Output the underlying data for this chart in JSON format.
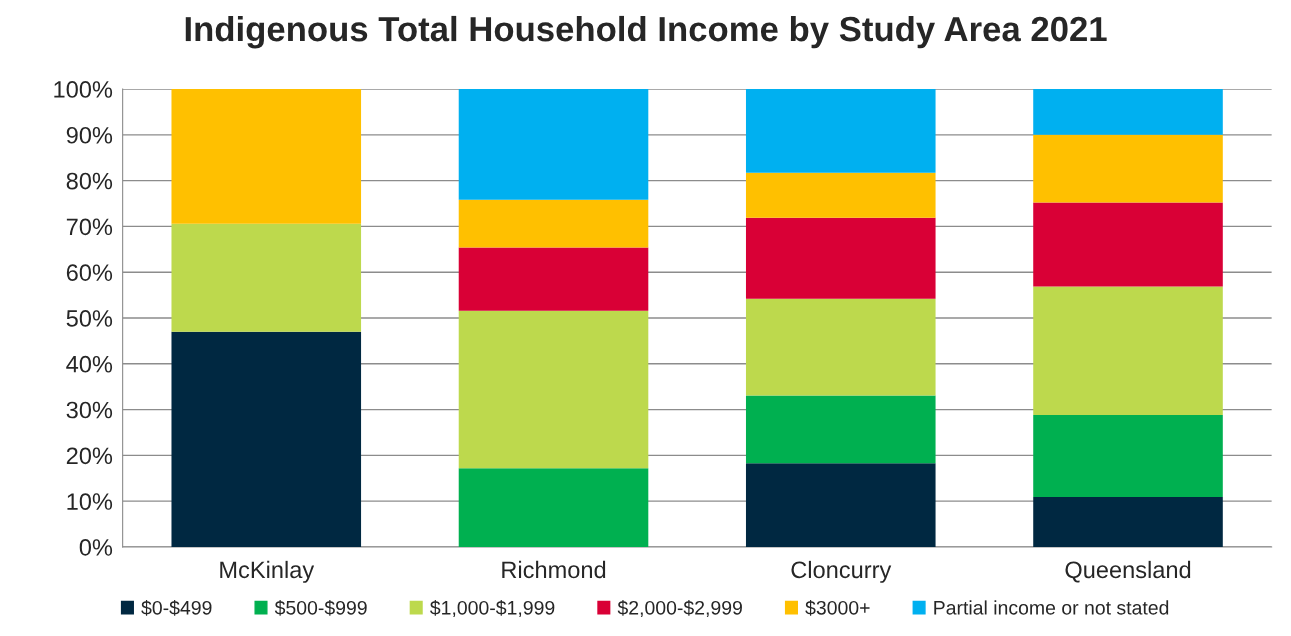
{
  "chart_data": {
    "type": "bar",
    "title": "Indigenous Total Household Income by Study Area 2021",
    "stacked": true,
    "categories": [
      "McKinlay",
      "Richmond",
      "Cloncurry",
      "Queensland"
    ],
    "series": [
      {
        "name": "$0-$499",
        "color": "#002841",
        "values": [
          47,
          null,
          18.3,
          10.9
        ]
      },
      {
        "name": "$500-$999",
        "color": "#00b050",
        "values": [
          null,
          17.2,
          14.8,
          17.9
        ]
      },
      {
        "name": "$1,000-$1,999",
        "color": "#bdd94d",
        "values": [
          23.6,
          34.4,
          21.1,
          28.1
        ]
      },
      {
        "name": "$2,000-$2,999",
        "color": "#d90036",
        "values": [
          null,
          13.8,
          17.7,
          18.3
        ]
      },
      {
        "name": "$3000+",
        "color": "#ffc000",
        "values": [
          29.4,
          10.4,
          9.8,
          14.8
        ]
      },
      {
        "name": "Partial income or not stated",
        "color": "#00b0f0",
        "values": [
          null,
          24.2,
          18.3,
          10.0
        ]
      }
    ],
    "ylim": [
      0,
      100
    ],
    "yticks": [
      {
        "value": 0,
        "label": "0%"
      },
      {
        "value": 10,
        "label": "10%"
      },
      {
        "value": 20,
        "label": "20%"
      },
      {
        "value": 30,
        "label": "30%"
      },
      {
        "value": 40,
        "label": "40%"
      },
      {
        "value": 50,
        "label": "50%"
      },
      {
        "value": 60,
        "label": "60%"
      },
      {
        "value": 70,
        "label": "70%"
      },
      {
        "value": 80,
        "label": "80%"
      },
      {
        "value": 90,
        "label": "90%"
      },
      {
        "value": 100,
        "label": "100%"
      }
    ],
    "grid": "y",
    "legend": "bottom"
  }
}
